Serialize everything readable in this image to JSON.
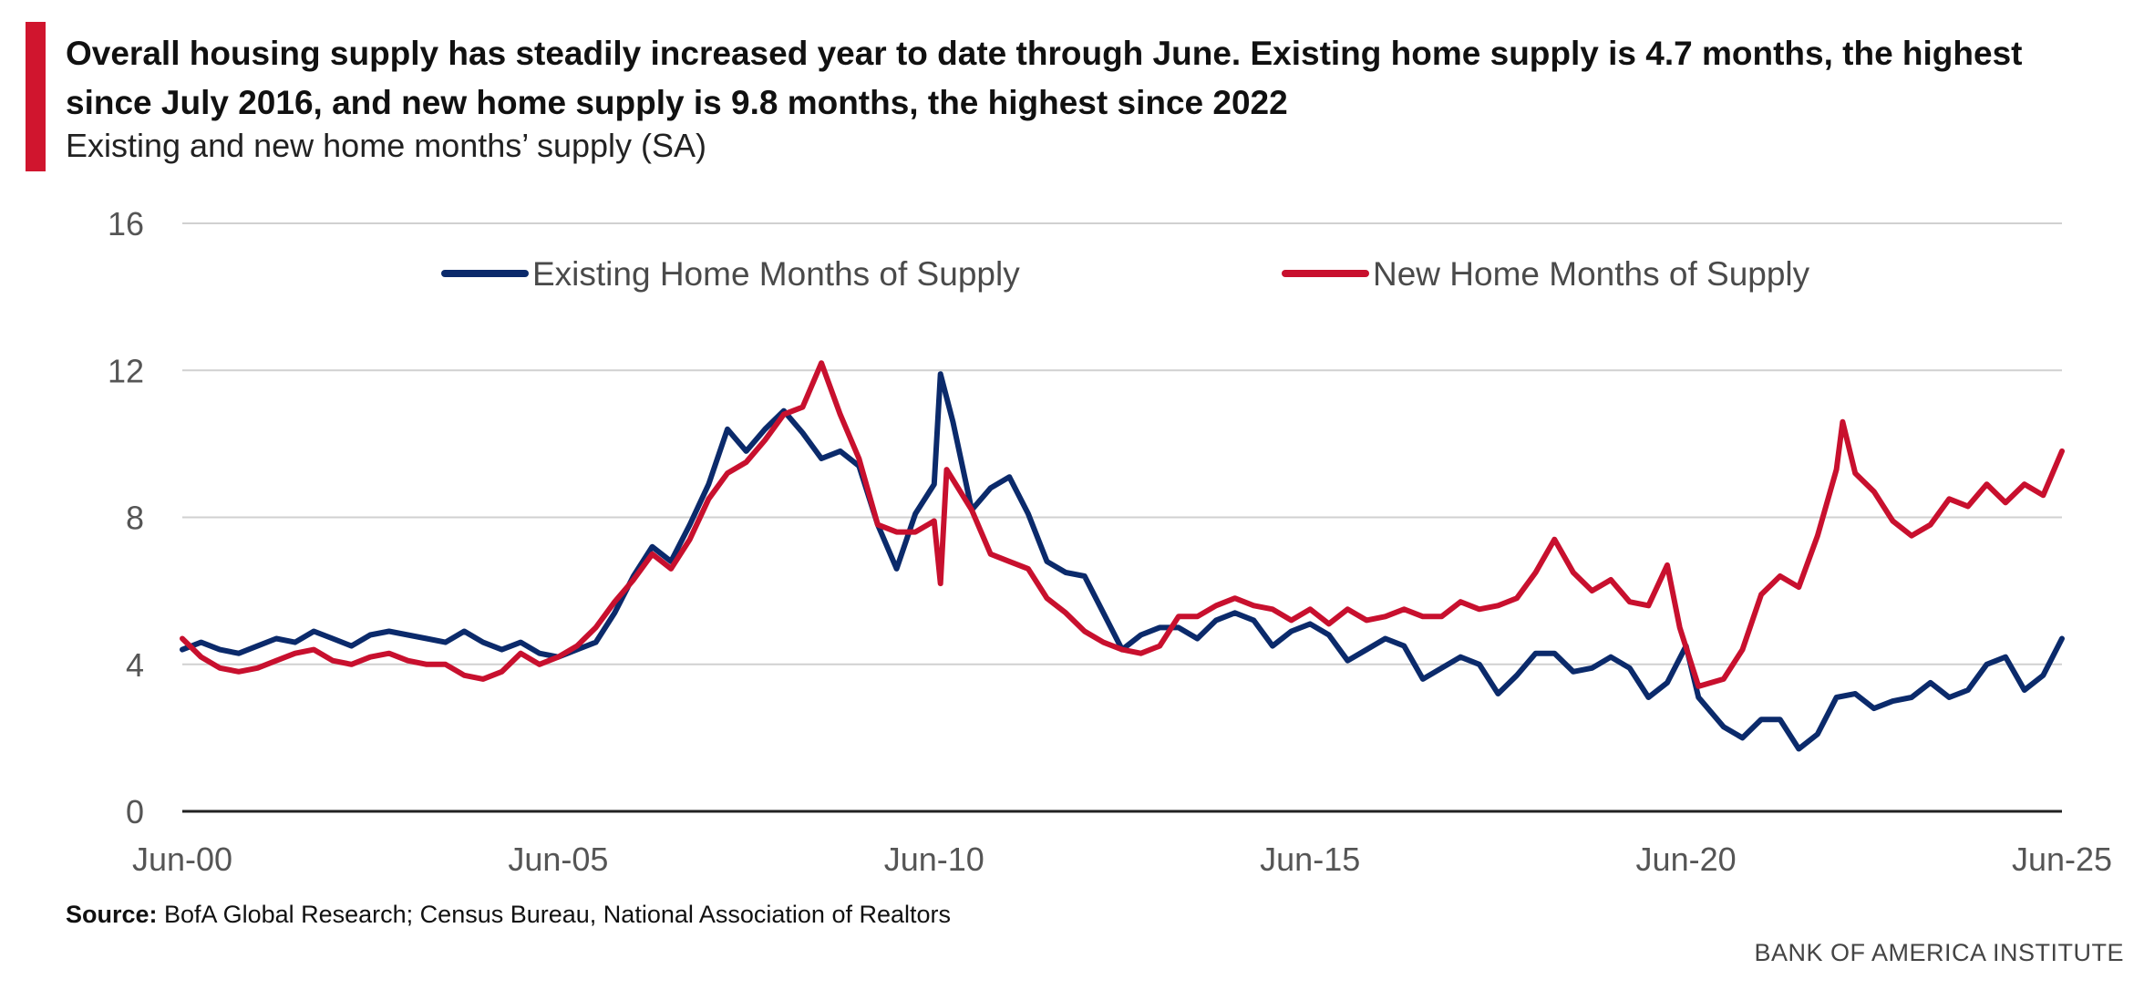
{
  "header": {
    "title": "Overall housing supply has steadily increased year to date through June. Existing home supply is 4.7 months, the highest since July 2016, and new home supply is 9.8 months, the highest since 2022",
    "subtitle": "Existing and new home months’ supply (SA)"
  },
  "footer": {
    "source_label": "Source:",
    "source_text": " BofA Global Research; Census Bureau, National Association of Realtors",
    "brand": "BANK OF AMERICA INSTITUTE"
  },
  "colors": {
    "accent": "#d0152e",
    "existing": "#0b2a6b",
    "new": "#c8102e",
    "grid": "#d0d0d0",
    "axis": "#222222",
    "tick_text": "#555555"
  },
  "chart_data": {
    "type": "line",
    "ylim": [
      0,
      16
    ],
    "xlim": [
      "2000-06",
      "2025-06"
    ],
    "y_ticks": [
      0,
      4,
      8,
      12,
      16
    ],
    "y_tick_labels": [
      "0",
      "4",
      "8",
      "12",
      "16"
    ],
    "x_ticks": [
      "2000-06",
      "2005-06",
      "2010-06",
      "2015-06",
      "2020-06",
      "2025-06"
    ],
    "x_tick_labels": [
      "Jun-00",
      "Jun-05",
      "Jun-10",
      "Jun-15",
      "Jun-20",
      "Jun-25"
    ],
    "grid": true,
    "legend_position": "top-center",
    "series": [
      {
        "name": "Existing Home Months of Supply",
        "color": "#0b2a6b",
        "points": [
          [
            "2000-06",
            4.4
          ],
          [
            "2000-09",
            4.6
          ],
          [
            "2000-12",
            4.4
          ],
          [
            "2001-03",
            4.3
          ],
          [
            "2001-06",
            4.5
          ],
          [
            "2001-09",
            4.7
          ],
          [
            "2001-12",
            4.6
          ],
          [
            "2002-03",
            4.9
          ],
          [
            "2002-06",
            4.7
          ],
          [
            "2002-09",
            4.5
          ],
          [
            "2002-12",
            4.8
          ],
          [
            "2003-03",
            4.9
          ],
          [
            "2003-06",
            4.8
          ],
          [
            "2003-09",
            4.7
          ],
          [
            "2003-12",
            4.6
          ],
          [
            "2004-03",
            4.9
          ],
          [
            "2004-06",
            4.6
          ],
          [
            "2004-09",
            4.4
          ],
          [
            "2004-12",
            4.6
          ],
          [
            "2005-03",
            4.3
          ],
          [
            "2005-06",
            4.2
          ],
          [
            "2005-09",
            4.4
          ],
          [
            "2005-12",
            4.6
          ],
          [
            "2006-03",
            5.4
          ],
          [
            "2006-06",
            6.4
          ],
          [
            "2006-09",
            7.2
          ],
          [
            "2006-12",
            6.8
          ],
          [
            "2007-03",
            7.8
          ],
          [
            "2007-06",
            8.9
          ],
          [
            "2007-09",
            10.4
          ],
          [
            "2007-12",
            9.8
          ],
          [
            "2008-03",
            10.4
          ],
          [
            "2008-06",
            10.9
          ],
          [
            "2008-09",
            10.3
          ],
          [
            "2008-12",
            9.6
          ],
          [
            "2009-03",
            9.8
          ],
          [
            "2009-06",
            9.4
          ],
          [
            "2009-09",
            7.8
          ],
          [
            "2009-12",
            6.6
          ],
          [
            "2010-03",
            8.1
          ],
          [
            "2010-06",
            8.9
          ],
          [
            "2010-07",
            11.9
          ],
          [
            "2010-09",
            10.6
          ],
          [
            "2010-12",
            8.2
          ],
          [
            "2011-03",
            8.8
          ],
          [
            "2011-06",
            9.1
          ],
          [
            "2011-09",
            8.1
          ],
          [
            "2011-12",
            6.8
          ],
          [
            "2012-03",
            6.5
          ],
          [
            "2012-06",
            6.4
          ],
          [
            "2012-09",
            5.4
          ],
          [
            "2012-12",
            4.4
          ],
          [
            "2013-03",
            4.8
          ],
          [
            "2013-06",
            5.0
          ],
          [
            "2013-09",
            5.0
          ],
          [
            "2013-12",
            4.7
          ],
          [
            "2014-03",
            5.2
          ],
          [
            "2014-06",
            5.4
          ],
          [
            "2014-09",
            5.2
          ],
          [
            "2014-12",
            4.5
          ],
          [
            "2015-03",
            4.9
          ],
          [
            "2015-06",
            5.1
          ],
          [
            "2015-09",
            4.8
          ],
          [
            "2015-12",
            4.1
          ],
          [
            "2016-03",
            4.4
          ],
          [
            "2016-06",
            4.7
          ],
          [
            "2016-09",
            4.5
          ],
          [
            "2016-12",
            3.6
          ],
          [
            "2017-03",
            3.9
          ],
          [
            "2017-06",
            4.2
          ],
          [
            "2017-09",
            4.0
          ],
          [
            "2017-12",
            3.2
          ],
          [
            "2018-03",
            3.7
          ],
          [
            "2018-06",
            4.3
          ],
          [
            "2018-09",
            4.3
          ],
          [
            "2018-12",
            3.8
          ],
          [
            "2019-03",
            3.9
          ],
          [
            "2019-06",
            4.2
          ],
          [
            "2019-09",
            3.9
          ],
          [
            "2019-12",
            3.1
          ],
          [
            "2020-03",
            3.5
          ],
          [
            "2020-06",
            4.5
          ],
          [
            "2020-08",
            3.1
          ],
          [
            "2020-12",
            2.3
          ],
          [
            "2021-03",
            2.0
          ],
          [
            "2021-06",
            2.5
          ],
          [
            "2021-09",
            2.5
          ],
          [
            "2021-12",
            1.7
          ],
          [
            "2022-03",
            2.1
          ],
          [
            "2022-06",
            3.1
          ],
          [
            "2022-09",
            3.2
          ],
          [
            "2022-12",
            2.8
          ],
          [
            "2023-03",
            3.0
          ],
          [
            "2023-06",
            3.1
          ],
          [
            "2023-09",
            3.5
          ],
          [
            "2023-12",
            3.1
          ],
          [
            "2024-03",
            3.3
          ],
          [
            "2024-06",
            4.0
          ],
          [
            "2024-09",
            4.2
          ],
          [
            "2024-12",
            3.3
          ],
          [
            "2025-03",
            3.7
          ],
          [
            "2025-06",
            4.7
          ]
        ]
      },
      {
        "name": "New Home Months of Supply",
        "color": "#c8102e",
        "points": [
          [
            "2000-06",
            4.7
          ],
          [
            "2000-09",
            4.2
          ],
          [
            "2000-12",
            3.9
          ],
          [
            "2001-03",
            3.8
          ],
          [
            "2001-06",
            3.9
          ],
          [
            "2001-09",
            4.1
          ],
          [
            "2001-12",
            4.3
          ],
          [
            "2002-03",
            4.4
          ],
          [
            "2002-06",
            4.1
          ],
          [
            "2002-09",
            4.0
          ],
          [
            "2002-12",
            4.2
          ],
          [
            "2003-03",
            4.3
          ],
          [
            "2003-06",
            4.1
          ],
          [
            "2003-09",
            4.0
          ],
          [
            "2003-12",
            4.0
          ],
          [
            "2004-03",
            3.7
          ],
          [
            "2004-06",
            3.6
          ],
          [
            "2004-09",
            3.8
          ],
          [
            "2004-12",
            4.3
          ],
          [
            "2005-03",
            4.0
          ],
          [
            "2005-06",
            4.2
          ],
          [
            "2005-09",
            4.5
          ],
          [
            "2005-12",
            5.0
          ],
          [
            "2006-03",
            5.7
          ],
          [
            "2006-06",
            6.3
          ],
          [
            "2006-09",
            7.0
          ],
          [
            "2006-12",
            6.6
          ],
          [
            "2007-03",
            7.4
          ],
          [
            "2007-06",
            8.5
          ],
          [
            "2007-09",
            9.2
          ],
          [
            "2007-12",
            9.5
          ],
          [
            "2008-03",
            10.1
          ],
          [
            "2008-06",
            10.8
          ],
          [
            "2008-09",
            11.0
          ],
          [
            "2008-12",
            12.2
          ],
          [
            "2009-03",
            10.8
          ],
          [
            "2009-06",
            9.6
          ],
          [
            "2009-09",
            7.8
          ],
          [
            "2009-12",
            7.6
          ],
          [
            "2010-03",
            7.6
          ],
          [
            "2010-06",
            7.9
          ],
          [
            "2010-07",
            6.2
          ],
          [
            "2010-08",
            9.3
          ],
          [
            "2010-12",
            8.2
          ],
          [
            "2011-03",
            7.0
          ],
          [
            "2011-06",
            6.8
          ],
          [
            "2011-09",
            6.6
          ],
          [
            "2011-12",
            5.8
          ],
          [
            "2012-03",
            5.4
          ],
          [
            "2012-06",
            4.9
          ],
          [
            "2012-09",
            4.6
          ],
          [
            "2012-12",
            4.4
          ],
          [
            "2013-03",
            4.3
          ],
          [
            "2013-06",
            4.5
          ],
          [
            "2013-09",
            5.3
          ],
          [
            "2013-12",
            5.3
          ],
          [
            "2014-03",
            5.6
          ],
          [
            "2014-06",
            5.8
          ],
          [
            "2014-09",
            5.6
          ],
          [
            "2014-12",
            5.5
          ],
          [
            "2015-03",
            5.2
          ],
          [
            "2015-06",
            5.5
          ],
          [
            "2015-09",
            5.1
          ],
          [
            "2015-12",
            5.5
          ],
          [
            "2016-03",
            5.2
          ],
          [
            "2016-06",
            5.3
          ],
          [
            "2016-09",
            5.5
          ],
          [
            "2016-12",
            5.3
          ],
          [
            "2017-03",
            5.3
          ],
          [
            "2017-06",
            5.7
          ],
          [
            "2017-09",
            5.5
          ],
          [
            "2017-12",
            5.6
          ],
          [
            "2018-03",
            5.8
          ],
          [
            "2018-06",
            6.5
          ],
          [
            "2018-09",
            7.4
          ],
          [
            "2018-12",
            6.5
          ],
          [
            "2019-03",
            6.0
          ],
          [
            "2019-06",
            6.3
          ],
          [
            "2019-09",
            5.7
          ],
          [
            "2019-12",
            5.6
          ],
          [
            "2020-03",
            6.7
          ],
          [
            "2020-05",
            5.0
          ],
          [
            "2020-08",
            3.4
          ],
          [
            "2020-12",
            3.6
          ],
          [
            "2021-03",
            4.4
          ],
          [
            "2021-06",
            5.9
          ],
          [
            "2021-09",
            6.4
          ],
          [
            "2021-12",
            6.1
          ],
          [
            "2022-03",
            7.5
          ],
          [
            "2022-06",
            9.3
          ],
          [
            "2022-07",
            10.6
          ],
          [
            "2022-09",
            9.2
          ],
          [
            "2022-12",
            8.7
          ],
          [
            "2023-03",
            7.9
          ],
          [
            "2023-06",
            7.5
          ],
          [
            "2023-09",
            7.8
          ],
          [
            "2023-12",
            8.5
          ],
          [
            "2024-03",
            8.3
          ],
          [
            "2024-06",
            8.9
          ],
          [
            "2024-09",
            8.4
          ],
          [
            "2024-12",
            8.9
          ],
          [
            "2025-03",
            8.6
          ],
          [
            "2025-06",
            9.8
          ]
        ]
      }
    ]
  }
}
